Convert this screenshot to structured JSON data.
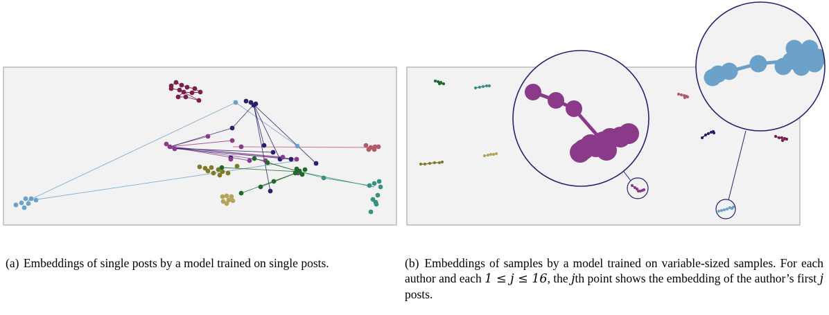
{
  "figure": {
    "panel_a": {
      "clusters": [
        {
          "name": "maroon",
          "color": "#7a1f4b",
          "shape": "tight"
        },
        {
          "name": "purple-navy",
          "color": "#26206e",
          "shape": "spread"
        },
        {
          "name": "light-blue",
          "color": "#6ca2c9",
          "shape": "spread"
        },
        {
          "name": "magenta",
          "color": "#8b3a8a",
          "shape": "spread"
        },
        {
          "name": "rose",
          "color": "#b45a6b",
          "shape": "tight"
        },
        {
          "name": "olive",
          "color": "#7e7a2a",
          "shape": "tight"
        },
        {
          "name": "dark-green",
          "color": "#1e6a2c",
          "shape": "spread"
        },
        {
          "name": "teal",
          "color": "#3a9080",
          "shape": "spread"
        },
        {
          "name": "khaki",
          "color": "#b6a35a",
          "shape": "tight"
        }
      ]
    },
    "panel_b": {
      "trajectories": [
        {
          "name": "dark-green",
          "color": "#1e6a2c"
        },
        {
          "name": "teal",
          "color": "#3a9080"
        },
        {
          "name": "olive",
          "color": "#7e7a2a"
        },
        {
          "name": "khaki",
          "color": "#b6a35a"
        },
        {
          "name": "magenta",
          "color": "#8b3a8a",
          "zoomed": true
        },
        {
          "name": "rose",
          "color": "#b45a6b"
        },
        {
          "name": "purple-navy",
          "color": "#26206e"
        },
        {
          "name": "maroon",
          "color": "#7a1f4b"
        },
        {
          "name": "light-blue",
          "color": "#6ca2c9",
          "zoomed": true
        }
      ],
      "zoom_ring_color": "#26206e"
    }
  },
  "caption_a": {
    "label": "(a)",
    "text": "Embeddings of single posts by a model trained on single posts."
  },
  "caption_b": {
    "label": "(b)",
    "text_1": "Embeddings of samples by a model trained on variable-sized samples. For each author and each ",
    "math_1": "1 ≤ j ≤ 16",
    "text_2": ", the ",
    "math_2": "j",
    "text_3": "th point shows the embedding of the author’s first ",
    "math_3": "j",
    "text_4": " posts."
  }
}
